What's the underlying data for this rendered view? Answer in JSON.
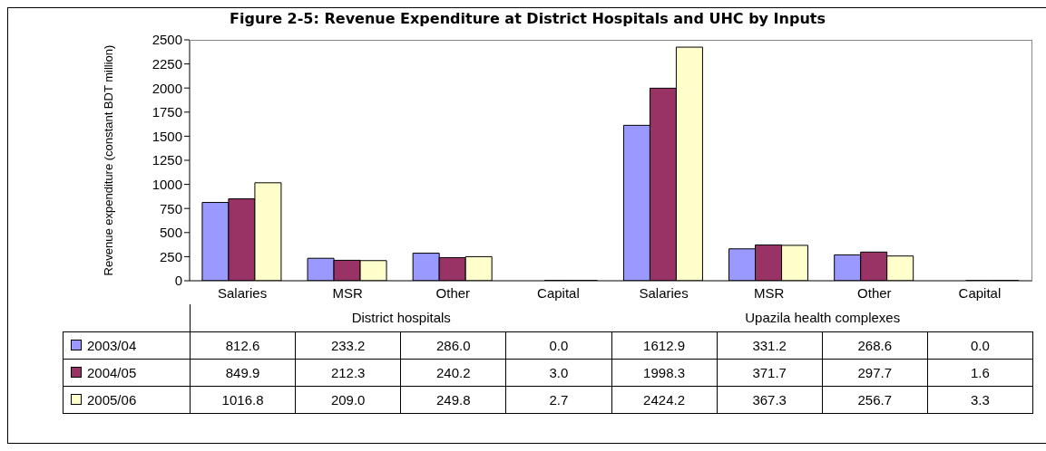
{
  "chart_data": {
    "type": "bar",
    "title": "Figure 2-5: Revenue Expenditure at District Hospitals and UHC by Inputs",
    "ylabel": "Revenue expenditure (constant BDT million)",
    "categories": [
      "Salaries",
      "MSR",
      "Other",
      "Capital",
      "Salaries",
      "MSR",
      "Other",
      "Capital"
    ],
    "annotations": [
      "District hospitals",
      "Upazila health complexes"
    ],
    "series": [
      {
        "name": "2003/04",
        "color": "#9999ff",
        "values": [
          812.6,
          233.2,
          286.0,
          0.0,
          1612.9,
          331.2,
          268.6,
          0.0
        ],
        "value_labels": [
          "812.6",
          "233.2",
          "286.0",
          "0.0",
          "1612.9",
          "331.2",
          "268.6",
          "0.0"
        ]
      },
      {
        "name": "2004/05",
        "color": "#993366",
        "values": [
          849.9,
          212.3,
          240.2,
          3.0,
          1998.3,
          371.7,
          297.7,
          1.6
        ],
        "value_labels": [
          "849.9",
          "212.3",
          "240.2",
          "3.0",
          "1998.3",
          "371.7",
          "297.7",
          "1.6"
        ]
      },
      {
        "name": "2005/06",
        "color": "#ffffcc",
        "values": [
          1016.8,
          209.0,
          249.8,
          2.7,
          2424.2,
          367.3,
          256.7,
          3.3
        ],
        "value_labels": [
          "1016.8",
          "209.0",
          "249.8",
          "2.7",
          "2424.2",
          "367.3",
          "256.7",
          "3.3"
        ]
      }
    ],
    "ylim": [
      0,
      2500
    ],
    "yticks": [
      0,
      250,
      500,
      750,
      1000,
      1250,
      1500,
      1750,
      2000,
      2250,
      2500
    ],
    "grid": false,
    "legend": "bottom left"
  }
}
